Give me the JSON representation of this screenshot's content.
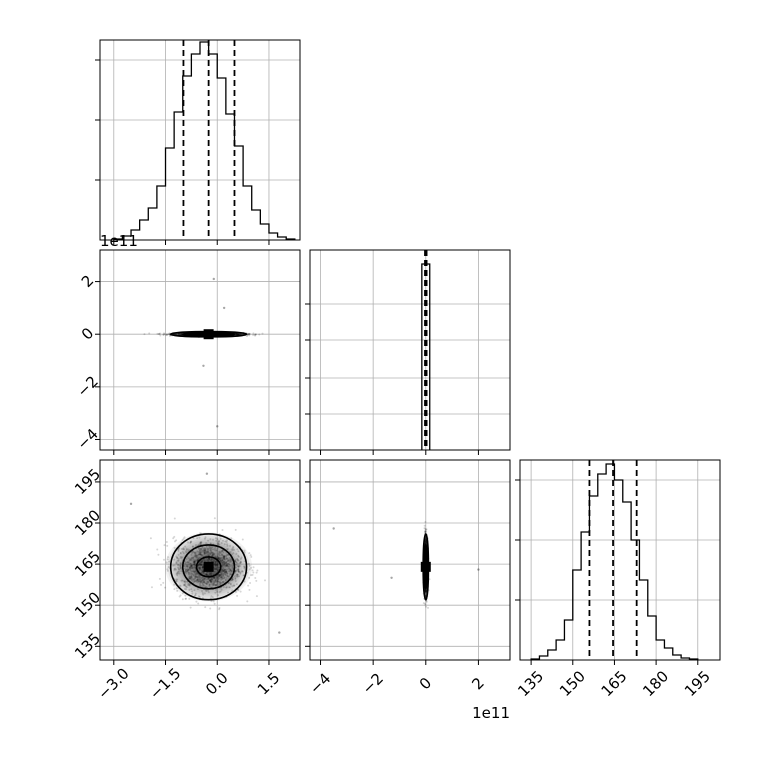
{
  "chart_data": {
    "type": "corner",
    "grid": true,
    "panels": [
      {
        "id": "hist-p1",
        "kind": "histogram",
        "xlim": [
          -3.4,
          2.4
        ],
        "ylim": [
          0,
          1.0
        ],
        "edges": [
          -3.0,
          -2.75,
          -2.5,
          -2.25,
          -2.0,
          -1.75,
          -1.5,
          -1.25,
          -1.0,
          -0.75,
          -0.5,
          -0.25,
          0.0,
          0.25,
          0.5,
          0.75,
          1.0,
          1.25,
          1.5,
          1.75,
          2.0,
          2.25
        ],
        "counts": [
          0.005,
          0.02,
          0.05,
          0.1,
          0.16,
          0.27,
          0.46,
          0.64,
          0.82,
          0.93,
          0.99,
          0.93,
          0.81,
          0.63,
          0.47,
          0.27,
          0.15,
          0.08,
          0.035,
          0.015,
          0.005
        ],
        "quantiles": [
          -0.98,
          -0.25,
          0.5
        ],
        "x_ticks": [
          -3.0,
          -1.5,
          0.0,
          1.5
        ],
        "y_ticks": [
          0.3,
          0.6,
          0.9
        ]
      },
      {
        "id": "scatter-p1-p2",
        "kind": "2d-density",
        "xlim": [
          -3.4,
          2.4
        ],
        "ylim": [
          -4.4,
          3.2
        ],
        "x_ticks": [
          -3.0,
          -1.5,
          0.0,
          1.5
        ],
        "y_ticks": [
          2,
          0,
          -2,
          -4
        ],
        "y_tick_labels": [
          "2",
          "0",
          "−2",
          "−4"
        ],
        "y_offset": "1e11",
        "center": [
          -0.25,
          0.0
        ],
        "spread": [
          0.9,
          0.05
        ],
        "contours": [
          [
            0.35,
            0.04
          ],
          [
            0.75,
            0.07
          ],
          [
            1.1,
            0.1
          ]
        ],
        "outliers": [
          [
            -0.1,
            2.1
          ],
          [
            0.0,
            -3.5
          ],
          [
            -0.4,
            -1.2
          ],
          [
            0.2,
            1.0
          ]
        ]
      },
      {
        "id": "hist-p2",
        "kind": "histogram",
        "xlim": [
          -4.4,
          3.2
        ],
        "ylim": [
          0,
          1.0
        ],
        "edges": [
          -0.15,
          0.0,
          0.15
        ],
        "counts": [
          0.93,
          0.93
        ],
        "quantiles": [
          -0.03,
          0.0,
          0.03
        ],
        "x_ticks": [
          -4,
          -2,
          0,
          2
        ],
        "y_ticks": [
          0.18,
          0.36,
          0.55,
          0.73
        ]
      },
      {
        "id": "scatter-p1-p3",
        "kind": "2d-density",
        "xlim": [
          -3.4,
          2.4
        ],
        "ylim": [
          130,
          203
        ],
        "x_ticks": [
          -3.0,
          -1.5,
          0.0,
          1.5
        ],
        "x_tick_labels": [
          "−3.0",
          "−1.5",
          "0.0",
          "1.5"
        ],
        "y_ticks": [
          135,
          150,
          165,
          180,
          195
        ],
        "center": [
          -0.25,
          164
        ],
        "spread": [
          0.9,
          9
        ],
        "contours": [
          [
            0.35,
            3.6
          ],
          [
            0.75,
            8
          ],
          [
            1.1,
            12
          ]
        ],
        "outliers": [
          [
            -2.5,
            187
          ],
          [
            1.8,
            140
          ],
          [
            -0.3,
            198
          ]
        ]
      },
      {
        "id": "scatter-p2-p3",
        "kind": "2d-density",
        "xlim": [
          -4.4,
          3.2
        ],
        "ylim": [
          130,
          203
        ],
        "x_ticks": [
          -4,
          -2,
          0,
          2
        ],
        "x_tick_labels": [
          "−4",
          "−2",
          "0",
          "2"
        ],
        "x_offset": "1e11",
        "y_ticks": [
          135,
          150,
          165,
          180,
          195
        ],
        "center": [
          0.0,
          164
        ],
        "spread": [
          0.06,
          9
        ],
        "contours": [
          [
            0.03,
            3.6
          ],
          [
            0.07,
            8
          ],
          [
            0.1,
            12
          ]
        ],
        "outliers": [
          [
            -3.5,
            178
          ],
          [
            2.0,
            163
          ],
          [
            -1.3,
            160
          ]
        ]
      },
      {
        "id": "hist-p3",
        "kind": "histogram",
        "xlim": [
          131,
          203
        ],
        "ylim": [
          0,
          1.0
        ],
        "edges": [
          135,
          138,
          141,
          144,
          147,
          150,
          153,
          156,
          159,
          162,
          165,
          168,
          171,
          174,
          177,
          180,
          183,
          186,
          189,
          192,
          195
        ],
        "counts": [
          0.005,
          0.02,
          0.05,
          0.1,
          0.2,
          0.45,
          0.64,
          0.82,
          0.93,
          0.98,
          0.9,
          0.79,
          0.6,
          0.4,
          0.22,
          0.1,
          0.06,
          0.025,
          0.01,
          0.005
        ],
        "quantiles": [
          156,
          164.5,
          173
        ],
        "x_ticks": [
          135,
          150,
          165,
          180,
          195
        ],
        "y_ticks": [
          0.3,
          0.6,
          0.9
        ]
      }
    ]
  }
}
